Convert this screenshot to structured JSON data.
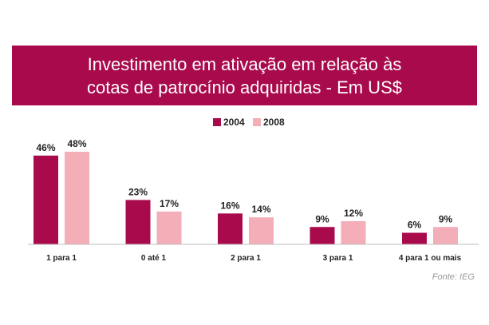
{
  "title_lines": [
    "Investimento em ativação em relação às",
    "cotas de patrocínio adquiridas - Em US$"
  ],
  "source": "Fonte: IEG",
  "colors": {
    "banner": "#a90a4c",
    "series_2004": "#a90a4c",
    "series_2008": "#f3aeb8"
  },
  "chart_data": {
    "type": "bar",
    "title": "Investimento em ativação em relação às cotas de patrocínio adquiridas - Em US$",
    "categories": [
      "1 para 1",
      "0 até 1",
      "2 para 1",
      "3 para 1",
      "4 para 1 ou mais"
    ],
    "series": [
      {
        "name": "2004",
        "values": [
          46,
          23,
          16,
          9,
          6
        ],
        "labels": [
          "46%",
          "23%",
          "16%",
          "9%",
          "6%"
        ]
      },
      {
        "name": "2008",
        "values": [
          48,
          17,
          14,
          12,
          9
        ],
        "labels": [
          "48%",
          "17%",
          "14%",
          "12%",
          "9%"
        ]
      }
    ],
    "unit": "%",
    "legend": "top-center",
    "grid": false
  }
}
